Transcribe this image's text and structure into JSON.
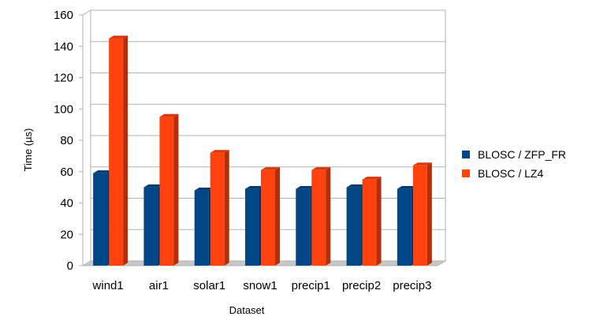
{
  "chart_data": {
    "type": "bar",
    "categories": [
      "wind1",
      "air1",
      "solar1",
      "snow1",
      "precip1",
      "precip2",
      "precip3"
    ],
    "series": [
      {
        "name": "BLOSC / ZFP_FR",
        "values": [
          59,
          50,
          48,
          49,
          49,
          50,
          49
        ],
        "color": "#004586"
      },
      {
        "name": "BLOSC / LZ4",
        "values": [
          145,
          95,
          72,
          61,
          61,
          55,
          64
        ],
        "color": "#ff420e"
      }
    ],
    "xlabel": "Dataset",
    "ylabel": "Time (µs)",
    "ylim": [
      0,
      160
    ],
    "yticks": [
      0,
      20,
      40,
      60,
      80,
      100,
      120,
      140,
      160
    ],
    "grid": true,
    "legend_position": "right"
  }
}
